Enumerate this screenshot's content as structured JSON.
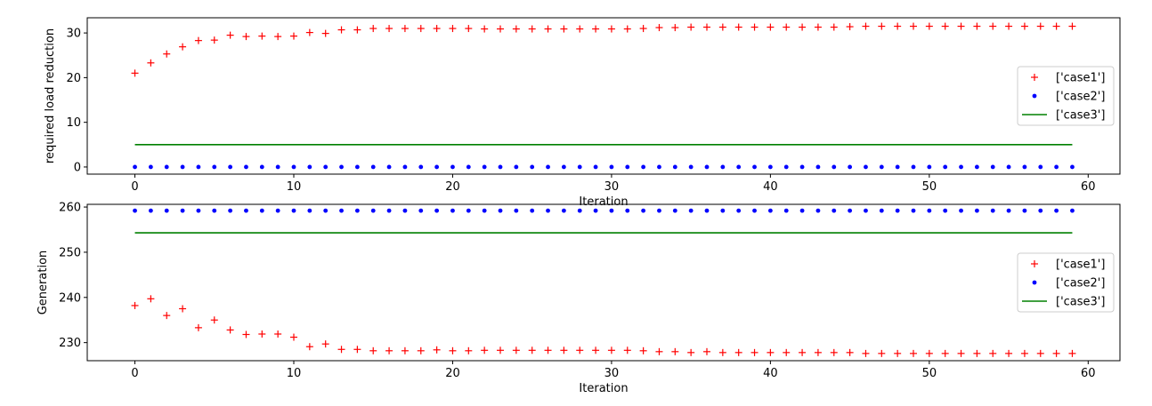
{
  "chart_data": [
    {
      "type": "scatter",
      "title": "",
      "xlabel": "Iteration",
      "ylabel": "required load reduction",
      "xlim": [
        -3,
        62
      ],
      "ylim": [
        -1.6,
        33.4
      ],
      "xticks": [
        0,
        10,
        20,
        30,
        40,
        50,
        60
      ],
      "yticks": [
        0,
        10,
        20,
        30
      ],
      "grid": false,
      "legend_position": "center-right",
      "x": [
        0,
        1,
        2,
        3,
        4,
        5,
        6,
        7,
        8,
        9,
        10,
        11,
        12,
        13,
        14,
        15,
        16,
        17,
        18,
        19,
        20,
        21,
        22,
        23,
        24,
        25,
        26,
        27,
        28,
        29,
        30,
        31,
        32,
        33,
        34,
        35,
        36,
        37,
        38,
        39,
        40,
        41,
        42,
        43,
        44,
        45,
        46,
        47,
        48,
        49,
        50,
        51,
        52,
        53,
        54,
        55,
        56,
        57,
        58,
        59
      ],
      "series": [
        {
          "name": "['case1']",
          "marker": "+",
          "color": "#ff0000",
          "values": [
            21.0,
            23.3,
            25.3,
            26.9,
            28.3,
            28.4,
            29.5,
            29.2,
            29.3,
            29.2,
            29.3,
            30.1,
            29.9,
            30.7,
            30.7,
            31.0,
            31.0,
            31.0,
            31.0,
            31.0,
            31.0,
            31.0,
            30.9,
            30.9,
            30.9,
            30.9,
            30.9,
            30.9,
            30.9,
            30.9,
            30.9,
            30.9,
            31.0,
            31.2,
            31.2,
            31.3,
            31.3,
            31.3,
            31.3,
            31.3,
            31.3,
            31.3,
            31.3,
            31.3,
            31.3,
            31.4,
            31.5,
            31.5,
            31.5,
            31.5,
            31.5,
            31.5,
            31.5,
            31.5,
            31.5,
            31.5,
            31.5,
            31.5,
            31.5,
            31.5
          ]
        },
        {
          "name": "['case2']",
          "marker": "dot",
          "color": "#0000ff",
          "values": [
            0,
            0,
            0,
            0,
            0,
            0,
            0,
            0,
            0,
            0,
            0,
            0,
            0,
            0,
            0,
            0,
            0,
            0,
            0,
            0,
            0,
            0,
            0,
            0,
            0,
            0,
            0,
            0,
            0,
            0,
            0,
            0,
            0,
            0,
            0,
            0,
            0,
            0,
            0,
            0,
            0,
            0,
            0,
            0,
            0,
            0,
            0,
            0,
            0,
            0,
            0,
            0,
            0,
            0,
            0,
            0,
            0,
            0,
            0,
            0
          ]
        },
        {
          "name": "['case3']",
          "marker": "line",
          "color": "#008000",
          "values": [
            5,
            5,
            5,
            5,
            5,
            5,
            5,
            5,
            5,
            5,
            5,
            5,
            5,
            5,
            5,
            5,
            5,
            5,
            5,
            5,
            5,
            5,
            5,
            5,
            5,
            5,
            5,
            5,
            5,
            5,
            5,
            5,
            5,
            5,
            5,
            5,
            5,
            5,
            5,
            5,
            5,
            5,
            5,
            5,
            5,
            5,
            5,
            5,
            5,
            5,
            5,
            5,
            5,
            5,
            5,
            5,
            5,
            5,
            5,
            5
          ]
        }
      ]
    },
    {
      "type": "scatter",
      "title": "",
      "xlabel": "Iteration",
      "ylabel": "Generation",
      "xlim": [
        -3,
        62
      ],
      "ylim": [
        226.0,
        260.6
      ],
      "xticks": [
        0,
        10,
        20,
        30,
        40,
        50,
        60
      ],
      "yticks": [
        230,
        240,
        250,
        260
      ],
      "grid": false,
      "legend_position": "center-right",
      "x": [
        0,
        1,
        2,
        3,
        4,
        5,
        6,
        7,
        8,
        9,
        10,
        11,
        12,
        13,
        14,
        15,
        16,
        17,
        18,
        19,
        20,
        21,
        22,
        23,
        24,
        25,
        26,
        27,
        28,
        29,
        30,
        31,
        32,
        33,
        34,
        35,
        36,
        37,
        38,
        39,
        40,
        41,
        42,
        43,
        44,
        45,
        46,
        47,
        48,
        49,
        50,
        51,
        52,
        53,
        54,
        55,
        56,
        57,
        58,
        59
      ],
      "series": [
        {
          "name": "['case1']",
          "marker": "+",
          "color": "#ff0000",
          "values": [
            238.2,
            239.7,
            236.0,
            237.5,
            233.3,
            235.0,
            232.8,
            231.8,
            231.9,
            231.9,
            231.2,
            229.1,
            229.7,
            228.5,
            228.5,
            228.2,
            228.2,
            228.2,
            228.2,
            228.4,
            228.2,
            228.2,
            228.3,
            228.3,
            228.3,
            228.3,
            228.3,
            228.3,
            228.3,
            228.3,
            228.3,
            228.3,
            228.2,
            228.0,
            228.0,
            227.8,
            228.0,
            227.8,
            227.8,
            227.8,
            227.8,
            227.8,
            227.8,
            227.8,
            227.8,
            227.8,
            227.6,
            227.6,
            227.6,
            227.6,
            227.6,
            227.6,
            227.6,
            227.6,
            227.6,
            227.6,
            227.6,
            227.6,
            227.6,
            227.6
          ]
        },
        {
          "name": "['case2']",
          "marker": "dot",
          "color": "#0000ff",
          "values": [
            259.2,
            259.2,
            259.2,
            259.2,
            259.2,
            259.2,
            259.2,
            259.2,
            259.2,
            259.2,
            259.2,
            259.2,
            259.2,
            259.2,
            259.2,
            259.2,
            259.2,
            259.2,
            259.2,
            259.2,
            259.2,
            259.2,
            259.2,
            259.2,
            259.2,
            259.2,
            259.2,
            259.2,
            259.2,
            259.2,
            259.2,
            259.2,
            259.2,
            259.2,
            259.2,
            259.2,
            259.2,
            259.2,
            259.2,
            259.2,
            259.2,
            259.2,
            259.2,
            259.2,
            259.2,
            259.2,
            259.2,
            259.2,
            259.2,
            259.2,
            259.2,
            259.2,
            259.2,
            259.2,
            259.2,
            259.2,
            259.2,
            259.2,
            259.2,
            259.2
          ]
        },
        {
          "name": "['case3']",
          "marker": "line",
          "color": "#008000",
          "values": [
            254.3,
            254.3,
            254.3,
            254.3,
            254.3,
            254.3,
            254.3,
            254.3,
            254.3,
            254.3,
            254.3,
            254.3,
            254.3,
            254.3,
            254.3,
            254.3,
            254.3,
            254.3,
            254.3,
            254.3,
            254.3,
            254.3,
            254.3,
            254.3,
            254.3,
            254.3,
            254.3,
            254.3,
            254.3,
            254.3,
            254.3,
            254.3,
            254.3,
            254.3,
            254.3,
            254.3,
            254.3,
            254.3,
            254.3,
            254.3,
            254.3,
            254.3,
            254.3,
            254.3,
            254.3,
            254.3,
            254.3,
            254.3,
            254.3,
            254.3,
            254.3,
            254.3,
            254.3,
            254.3,
            254.3,
            254.3,
            254.3,
            254.3,
            254.3,
            254.3
          ]
        }
      ]
    }
  ]
}
